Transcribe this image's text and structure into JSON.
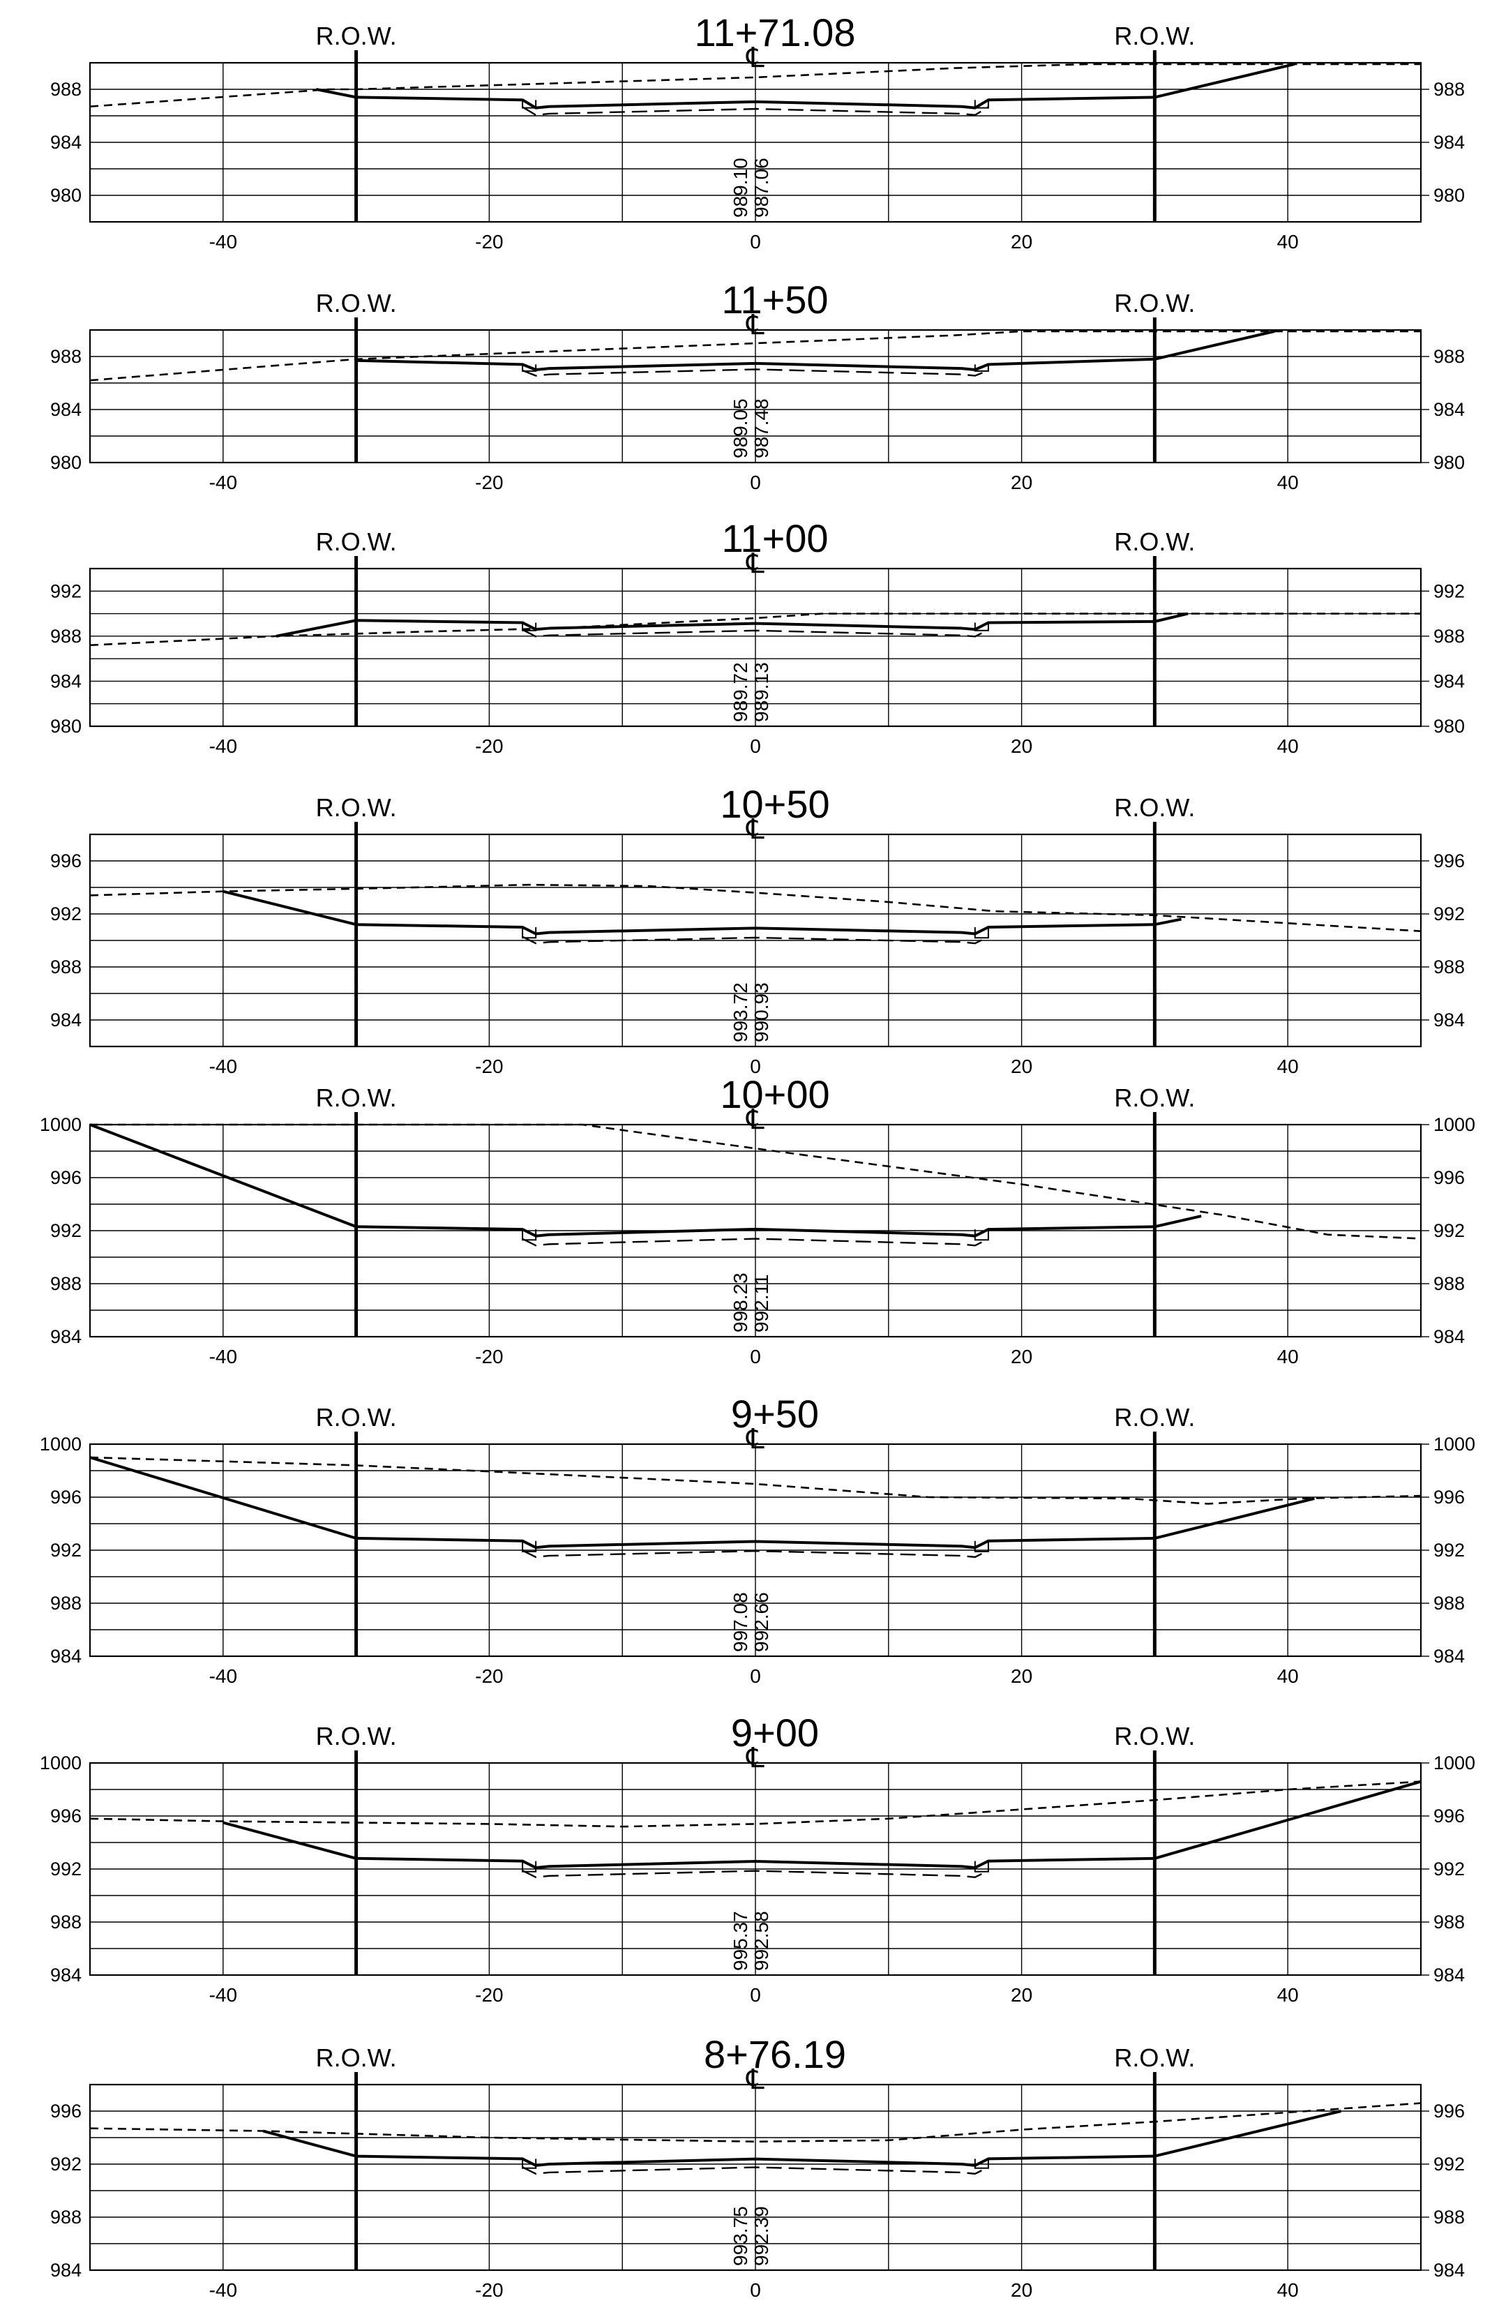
{
  "row_label": "R.O.W.",
  "centerline_symbol": "℄",
  "offsets": [
    "-40",
    "-20",
    "0",
    "20",
    "40"
  ],
  "sections": [
    {
      "station": "11+71.08",
      "elev_ticks": [
        "988",
        "984",
        "980"
      ],
      "y_range": [
        978,
        990
      ],
      "ground_elevation": "989.10",
      "grade_elevation": "987.06",
      "existing_ground": [
        [
          -50,
          986.7
        ],
        [
          -32,
          988.0
        ],
        [
          -30,
          988.0
        ],
        [
          0,
          988.9
        ],
        [
          15,
          989.6
        ],
        [
          25,
          989.9
        ],
        [
          50,
          989.9
        ]
      ],
      "design_profile": [
        [
          -33,
          988.0
        ],
        [
          -30,
          987.4
        ],
        [
          -17.5,
          987.2
        ],
        [
          -16.5,
          986.6
        ],
        [
          -15.5,
          986.7
        ],
        [
          0,
          987.06
        ],
        [
          15.5,
          986.7
        ],
        [
          16.5,
          986.6
        ],
        [
          17.5,
          987.2
        ],
        [
          30,
          987.4
        ],
        [
          40.5,
          989.9
        ]
      ]
    },
    {
      "station": "11+50",
      "elev_ticks": [
        "988",
        "984",
        "980"
      ],
      "y_range": [
        980,
        990
      ],
      "ground_elevation": "989.05",
      "grade_elevation": "987.48",
      "existing_ground": [
        [
          -50,
          986.2
        ],
        [
          -30,
          987.8
        ],
        [
          0,
          989.0
        ],
        [
          15,
          989.6
        ],
        [
          20,
          989.9
        ],
        [
          50,
          989.9
        ]
      ],
      "design_profile": [
        [
          -30,
          987.7
        ],
        [
          -17.5,
          987.4
        ],
        [
          -16.5,
          987.0
        ],
        [
          -15.5,
          987.1
        ],
        [
          0,
          987.48
        ],
        [
          15.5,
          987.1
        ],
        [
          16.5,
          987.0
        ],
        [
          17.5,
          987.4
        ],
        [
          30,
          987.8
        ],
        [
          39,
          989.9
        ]
      ]
    },
    {
      "station": "11+00",
      "elev_ticks": [
        "992",
        "988",
        "984",
        "980"
      ],
      "y_range": [
        980,
        994
      ],
      "ground_elevation": "989.72",
      "grade_elevation": "989.13",
      "existing_ground": [
        [
          -50,
          987.2
        ],
        [
          -36,
          988.0
        ],
        [
          -25,
          988.4
        ],
        [
          -15,
          988.7
        ],
        [
          0,
          989.6
        ],
        [
          5,
          990.0
        ],
        [
          20,
          990.0
        ],
        [
          50,
          990.0
        ]
      ],
      "design_profile": [
        [
          -36,
          988.0
        ],
        [
          -30,
          989.4
        ],
        [
          -17.5,
          989.2
        ],
        [
          -16.5,
          988.6
        ],
        [
          -15.5,
          988.7
        ],
        [
          0,
          989.13
        ],
        [
          15.5,
          988.7
        ],
        [
          16.5,
          988.6
        ],
        [
          17.5,
          989.2
        ],
        [
          30,
          989.3
        ],
        [
          32.5,
          990.0
        ]
      ]
    },
    {
      "station": "10+50",
      "elev_ticks": [
        "996",
        "992",
        "988",
        "984"
      ],
      "y_range": [
        982,
        998
      ],
      "ground_elevation": "993.72",
      "grade_elevation": "990.93",
      "existing_ground": [
        [
          -50,
          993.4
        ],
        [
          -40,
          993.7
        ],
        [
          -30,
          993.9
        ],
        [
          -17,
          994.2
        ],
        [
          -8,
          994.1
        ],
        [
          0,
          993.6
        ],
        [
          10,
          992.9
        ],
        [
          18,
          992.2
        ],
        [
          30,
          991.9
        ],
        [
          50,
          990.7
        ]
      ],
      "design_profile": [
        [
          -40,
          993.7
        ],
        [
          -30,
          991.2
        ],
        [
          -17.5,
          991.0
        ],
        [
          -16.5,
          990.5
        ],
        [
          -15.5,
          990.6
        ],
        [
          0,
          990.93
        ],
        [
          15.5,
          990.6
        ],
        [
          16.5,
          990.5
        ],
        [
          17.5,
          991.0
        ],
        [
          30,
          991.2
        ],
        [
          32,
          991.6
        ]
      ]
    },
    {
      "station": "10+00",
      "elev_ticks": [
        "1000",
        "996",
        "992",
        "988",
        "984"
      ],
      "y_range": [
        984,
        1000
      ],
      "ground_elevation": "998.23",
      "grade_elevation": "992.11",
      "existing_ground": [
        [
          -50,
          1000.0
        ],
        [
          -13,
          1000.0
        ],
        [
          0,
          998.2
        ],
        [
          20,
          995.5
        ],
        [
          35,
          993.2
        ],
        [
          43,
          991.7
        ],
        [
          50,
          991.4
        ]
      ],
      "design_profile": [
        [
          -50,
          1000.0
        ],
        [
          -30,
          992.3
        ],
        [
          -17.5,
          992.1
        ],
        [
          -16.5,
          991.6
        ],
        [
          -15.5,
          991.7
        ],
        [
          0,
          992.11
        ],
        [
          15.5,
          991.7
        ],
        [
          16.5,
          991.6
        ],
        [
          17.5,
          992.1
        ],
        [
          30,
          992.3
        ],
        [
          33.5,
          993.1
        ]
      ]
    },
    {
      "station": "9+50",
      "elev_ticks": [
        "1000",
        "996",
        "992",
        "988",
        "984"
      ],
      "y_range": [
        984,
        1000
      ],
      "ground_elevation": "997.08",
      "grade_elevation": "992.66",
      "existing_ground": [
        [
          -50,
          999.0
        ],
        [
          -30,
          998.4
        ],
        [
          -17,
          997.8
        ],
        [
          0,
          997.0
        ],
        [
          13,
          996.0
        ],
        [
          28,
          995.9
        ],
        [
          34,
          995.5
        ],
        [
          41,
          995.9
        ],
        [
          50,
          996.1
        ]
      ],
      "design_profile": [
        [
          -50,
          999.0
        ],
        [
          -30,
          992.9
        ],
        [
          -17.5,
          992.7
        ],
        [
          -16.5,
          992.2
        ],
        [
          -15.5,
          992.3
        ],
        [
          0,
          992.66
        ],
        [
          15.5,
          992.3
        ],
        [
          16.5,
          992.2
        ],
        [
          17.5,
          992.7
        ],
        [
          30,
          992.9
        ],
        [
          42,
          995.9
        ]
      ]
    },
    {
      "station": "9+00",
      "elev_ticks": [
        "1000",
        "996",
        "992",
        "988",
        "984"
      ],
      "y_range": [
        984,
        1000
      ],
      "ground_elevation": "995.37",
      "grade_elevation": "992.58",
      "existing_ground": [
        [
          -50,
          995.8
        ],
        [
          -40,
          995.6
        ],
        [
          -20,
          995.4
        ],
        [
          -10,
          995.2
        ],
        [
          0,
          995.4
        ],
        [
          10,
          995.8
        ],
        [
          30,
          997.2
        ],
        [
          40,
          998.0
        ],
        [
          50,
          998.6
        ]
      ],
      "design_profile": [
        [
          -40,
          995.5
        ],
        [
          -30,
          992.8
        ],
        [
          -17.5,
          992.6
        ],
        [
          -16.5,
          992.1
        ],
        [
          -15.5,
          992.2
        ],
        [
          0,
          992.58
        ],
        [
          15.5,
          992.2
        ],
        [
          16.5,
          992.1
        ],
        [
          17.5,
          992.6
        ],
        [
          30,
          992.8
        ],
        [
          50,
          998.6
        ]
      ]
    },
    {
      "station": "8+76.19",
      "elev_ticks": [
        "996",
        "992",
        "988",
        "984"
      ],
      "y_range": [
        984,
        998
      ],
      "ground_elevation": "993.75",
      "grade_elevation": "992.39",
      "existing_ground": [
        [
          -50,
          994.7
        ],
        [
          -37,
          994.5
        ],
        [
          -20,
          994.0
        ],
        [
          0,
          993.7
        ],
        [
          10,
          993.8
        ],
        [
          20,
          994.6
        ],
        [
          30,
          995.2
        ],
        [
          40,
          995.9
        ],
        [
          50,
          996.6
        ]
      ],
      "design_profile": [
        [
          -37,
          994.5
        ],
        [
          -30,
          992.6
        ],
        [
          -17.5,
          992.4
        ],
        [
          -16.5,
          991.9
        ],
        [
          -15.5,
          992.0
        ],
        [
          0,
          992.39
        ],
        [
          15.5,
          992.0
        ],
        [
          16.5,
          991.9
        ],
        [
          17.5,
          992.4
        ],
        [
          30,
          992.6
        ],
        [
          44,
          996.0
        ]
      ]
    }
  ]
}
